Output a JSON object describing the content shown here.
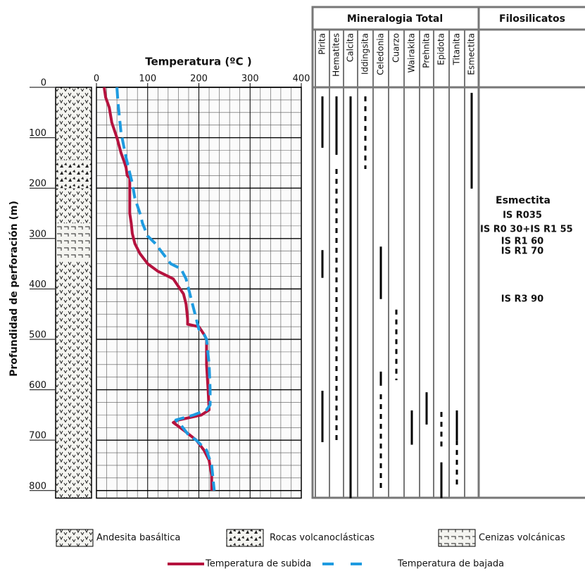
{
  "chart_data": {
    "type": "line",
    "title": "Temperatura (ºC )",
    "y_label": "Profundidad de perforación (m)",
    "xlim": [
      0,
      400
    ],
    "xticks": [
      0,
      100,
      200,
      300,
      400
    ],
    "x_minor_step": 20,
    "ylim": [
      0,
      815
    ],
    "yticks": [
      0,
      100,
      200,
      300,
      400,
      500,
      600,
      700,
      800
    ],
    "y_minor_step": 25,
    "grid": true,
    "series": [
      {
        "name": "Temperatura de subida",
        "color": "#b5123e",
        "dashed": false,
        "x": [
          15,
          18,
          25,
          30,
          40,
          48,
          55,
          58,
          60,
          65,
          65,
          65,
          68,
          70,
          75,
          85,
          100,
          120,
          150,
          170,
          175,
          178,
          178,
          200,
          210,
          215,
          215,
          218,
          220,
          205,
          160,
          150,
          170,
          195,
          210,
          220,
          225,
          225
        ],
        "y": [
          0,
          20,
          40,
          70,
          100,
          130,
          150,
          160,
          175,
          180,
          210,
          250,
          270,
          290,
          310,
          330,
          350,
          365,
          380,
          410,
          430,
          460,
          470,
          475,
          490,
          500,
          550,
          600,
          640,
          650,
          660,
          665,
          680,
          700,
          720,
          740,
          770,
          800
        ]
      },
      {
        "name": "Temperatura de bajada",
        "color": "#1e9be0",
        "dashed": true,
        "x": [
          40,
          42,
          45,
          48,
          52,
          58,
          65,
          70,
          75,
          85,
          90,
          100,
          115,
          130,
          145,
          165,
          175,
          185,
          190,
          195,
          200,
          210,
          215,
          220,
          222,
          222,
          215,
          190,
          155,
          165,
          180,
          195,
          215,
          225,
          230
        ],
        "y": [
          0,
          30,
          60,
          90,
          110,
          140,
          170,
          190,
          220,
          250,
          270,
          295,
          310,
          330,
          350,
          360,
          380,
          420,
          440,
          460,
          480,
          490,
          500,
          550,
          600,
          630,
          640,
          650,
          660,
          670,
          690,
          700,
          720,
          750,
          800
        ]
      }
    ],
    "lithology": [
      {
        "name": "Andesita basáltica",
        "intervals": [
          [
            0,
            145
          ],
          [
            200,
            270
          ],
          [
            345,
            815
          ]
        ]
      },
      {
        "name": "Rocas volcanoclásticas",
        "intervals": [
          [
            145,
            200
          ]
        ]
      },
      {
        "name": "Cenizas volcánicas",
        "intervals": [
          [
            270,
            345
          ]
        ]
      }
    ],
    "mineral_header": "Mineralogia Total",
    "minerals": [
      {
        "name": "Pirita",
        "intervals": [
          {
            "from": 18,
            "to": 120,
            "dashed": false
          },
          {
            "from": 323,
            "to": 378,
            "dashed": false
          },
          {
            "from": 602,
            "to": 704,
            "dashed": false
          }
        ]
      },
      {
        "name": "Hematites",
        "intervals": [
          {
            "from": 18,
            "to": 134,
            "dashed": false
          },
          {
            "from": 162,
            "to": 704,
            "dashed": true
          }
        ]
      },
      {
        "name": "Calcita",
        "intervals": [
          {
            "from": 18,
            "to": 815,
            "dashed": false
          }
        ]
      },
      {
        "name": "Iddingsita",
        "intervals": [
          {
            "from": 18,
            "to": 162,
            "dashed": true
          }
        ]
      },
      {
        "name": "Celedonia",
        "intervals": [
          {
            "from": 316,
            "to": 420,
            "dashed": false
          },
          {
            "from": 564,
            "to": 592,
            "dashed": false
          },
          {
            "from": 609,
            "to": 804,
            "dashed": true
          }
        ]
      },
      {
        "name": "Cuarzo",
        "intervals": [
          {
            "from": 441,
            "to": 581,
            "dashed": true
          }
        ]
      },
      {
        "name": "Wairakita",
        "intervals": [
          {
            "from": 641,
            "to": 709,
            "dashed": false
          }
        ]
      },
      {
        "name": "Prehnita",
        "intervals": [
          {
            "from": 605,
            "to": 669,
            "dashed": false
          }
        ]
      },
      {
        "name": "Epidota",
        "intervals": [
          {
            "from": 644,
            "to": 721,
            "dashed": true
          },
          {
            "from": 744,
            "to": 815,
            "dashed": false
          }
        ]
      },
      {
        "name": "Titanita",
        "intervals": [
          {
            "from": 641,
            "to": 700,
            "dashed": false
          },
          {
            "from": 700,
            "to": 790,
            "dashed": true
          }
        ]
      },
      {
        "name": "Esmectita",
        "intervals": [
          {
            "from": 11,
            "to": 201,
            "dashed": false
          }
        ]
      }
    ],
    "filosilicatos": {
      "header": "Filosilicatos",
      "notes": [
        "Esmectita",
        "IS R035",
        "IS R0 30+IS R1 55",
        "IS R1 60",
        "IS R1 70",
        "IS R3 90"
      ]
    }
  }
}
